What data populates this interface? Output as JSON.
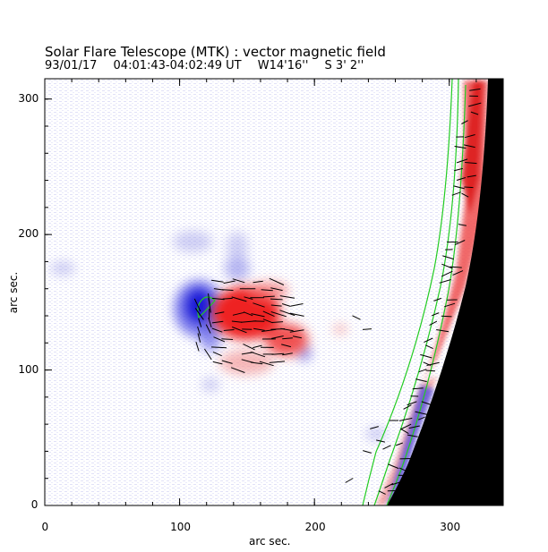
{
  "header": {
    "title": "Solar Flare Telescope (MTK) : vector magnetic field",
    "date": "93/01/17",
    "time_range": "04:01:43-04:02:49 UT",
    "coord_w": "W14'16''",
    "coord_s": "S 3' 2''"
  },
  "axes": {
    "xlabel": "arc sec.",
    "ylabel": "arc sec.",
    "xlim": [
      0,
      340
    ],
    "ylim": [
      0,
      315
    ],
    "x_ticks": [
      "0",
      "100",
      "200",
      "300"
    ],
    "y_ticks": [
      "0",
      "100",
      "200",
      "300"
    ]
  },
  "colors": {
    "positive_polarity": "#ef5050",
    "negative_polarity": "#2a2ae0",
    "contour": "#22cc22",
    "limb_background": "#000000",
    "vector_arrows": "#000000"
  }
}
